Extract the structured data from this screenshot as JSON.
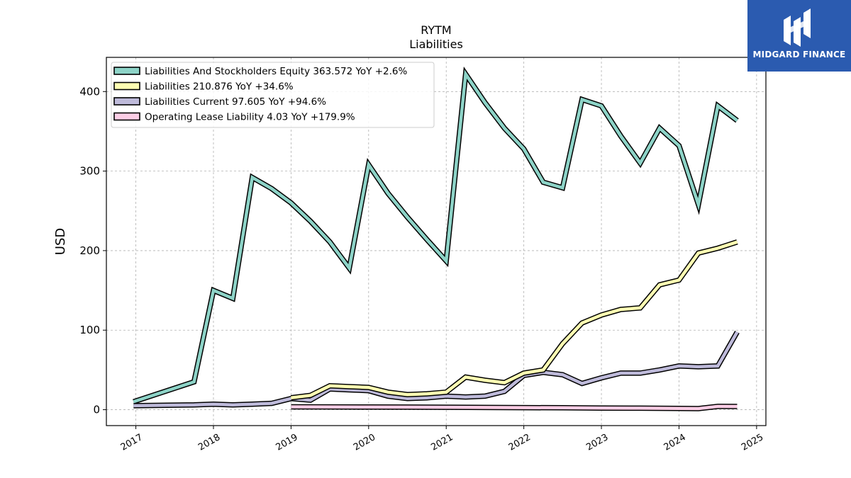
{
  "header": {
    "ticker": "RYTM",
    "subtitle": "Liabilities"
  },
  "logo": {
    "text": "MIDGARD FINANCE",
    "icon": "midgard-logo-icon",
    "background": "#2b5bb0"
  },
  "chart_data": {
    "type": "line",
    "title": "RYTM",
    "subtitle": "Liabilities",
    "ylabel": "USD",
    "xlabel": "",
    "xlim": [
      2016.62,
      2025.12
    ],
    "ylim": [
      -20,
      443
    ],
    "x_ticks": [
      "2017",
      "2018",
      "2019",
      "2020",
      "2021",
      "2022",
      "2023",
      "2024",
      "2025"
    ],
    "y_ticks": [
      0,
      100,
      200,
      300,
      400
    ],
    "grid": true,
    "legend_position": "top-left",
    "series": [
      {
        "name": "Liabilities And Stockholders Equity",
        "legend": "Liabilities And Stockholders Equity  363.572 YoY +2.6%",
        "color": "#8dd3c7",
        "x": [
          2016.97,
          2017.75,
          2018.0,
          2018.25,
          2018.5,
          2018.75,
          2019.0,
          2019.25,
          2019.5,
          2019.75,
          2020.0,
          2020.25,
          2020.5,
          2020.75,
          2021.0,
          2021.25,
          2021.5,
          2021.75,
          2022.0,
          2022.25,
          2022.5,
          2022.75,
          2023.0,
          2023.25,
          2023.5,
          2023.75,
          2024.0,
          2024.25,
          2024.5,
          2024.75
        ],
        "y": [
          10,
          35,
          150,
          140,
          292,
          278,
          260,
          237,
          211,
          178,
          308,
          272,
          242,
          214,
          187,
          422,
          386,
          354,
          328,
          286,
          279,
          390,
          382,
          344,
          310,
          354,
          332,
          258,
          382,
          363.572
        ]
      },
      {
        "name": "Liabilities",
        "legend": "Liabilities  210.876 YoY +34.6%",
        "color": "#ffffb3",
        "x": [
          2019.0,
          2019.25,
          2019.5,
          2019.75,
          2020.0,
          2020.25,
          2020.5,
          2020.75,
          2021.0,
          2021.25,
          2021.5,
          2021.75,
          2022.0,
          2022.25,
          2022.5,
          2022.75,
          2023.0,
          2023.25,
          2023.5,
          2023.75,
          2024.0,
          2024.25,
          2024.5,
          2024.75
        ],
        "y": [
          15,
          18,
          30,
          29,
          28,
          22,
          19,
          20,
          22,
          41,
          37,
          34,
          46,
          50,
          83,
          109,
          119,
          126,
          128,
          157,
          163,
          197,
          203,
          210.876
        ]
      },
      {
        "name": "Liabilities Current",
        "legend": "Liabilities Current  97.605 YoY +94.6%",
        "color": "#bebada",
        "x": [
          2016.97,
          2017.75,
          2018.0,
          2018.25,
          2018.5,
          2018.75,
          2019.0,
          2019.25,
          2019.5,
          2019.75,
          2020.0,
          2020.25,
          2020.5,
          2020.75,
          2021.0,
          2021.25,
          2021.5,
          2021.75,
          2022.0,
          2022.25,
          2022.5,
          2022.75,
          2023.0,
          2023.25,
          2023.5,
          2023.75,
          2024.0,
          2024.25,
          2024.5,
          2024.75
        ],
        "y": [
          5,
          6,
          7,
          6,
          7,
          8,
          14,
          12,
          26,
          25,
          24,
          17,
          14,
          15,
          17,
          16,
          17,
          23,
          43,
          47,
          44,
          33,
          40,
          46,
          46,
          50,
          55,
          54,
          55,
          97.605
        ]
      },
      {
        "name": "Operating Lease Liability",
        "legend": "Operating Lease Liability  4.03 YoY +179.9%",
        "color": "#fccde5",
        "x": [
          2019.0,
          2019.5,
          2020.0,
          2020.5,
          2021.0,
          2021.5,
          2022.0,
          2022.5,
          2023.0,
          2023.5,
          2024.0,
          2024.25,
          2024.5,
          2024.75
        ],
        "y": [
          3.6,
          3.5,
          3.3,
          3.2,
          3.1,
          2.8,
          2.6,
          2.4,
          2.1,
          1.9,
          1.6,
          1.4,
          4.1,
          4.03
        ]
      }
    ]
  }
}
